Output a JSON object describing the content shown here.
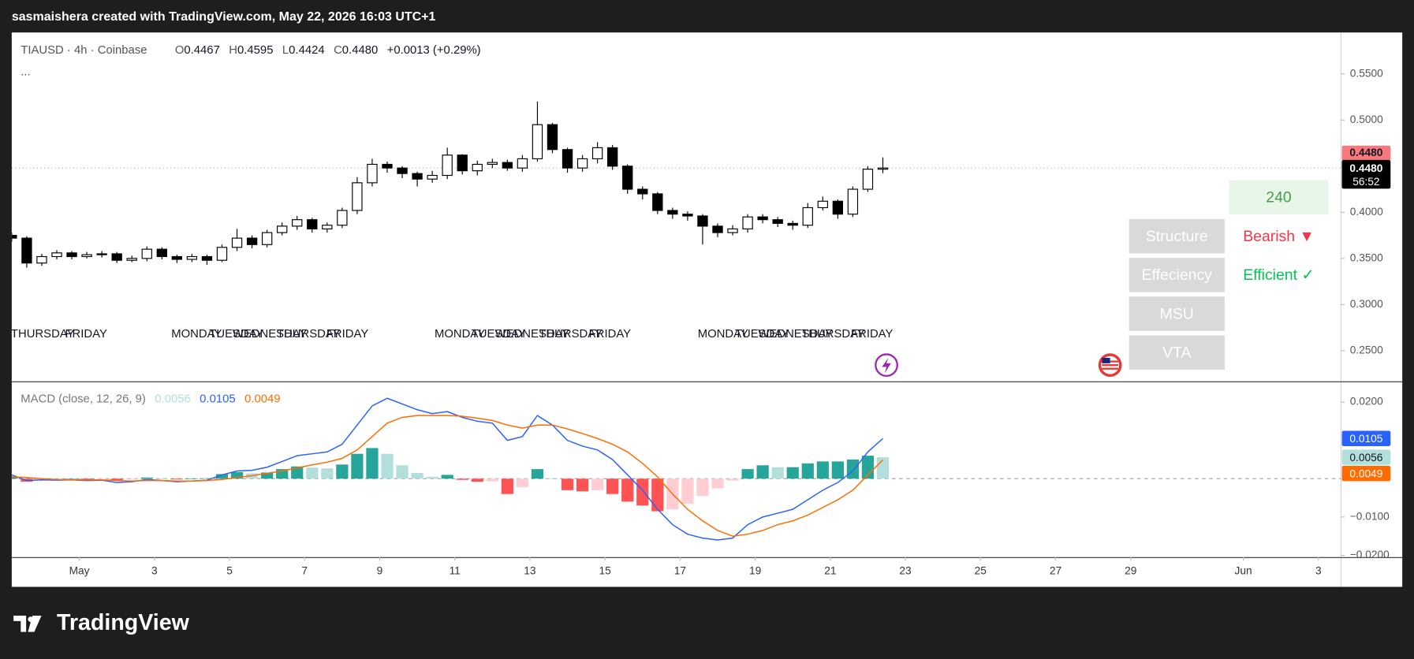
{
  "top_bar": "sasmaishera created with TradingView.com, May 22, 2026 16:03 UTC+1",
  "footer": "TradingView",
  "panel": {
    "timeframe": "240",
    "rows": [
      {
        "label": "Structure",
        "value": "Bearish ▼"
      },
      {
        "label": "Effeciency",
        "value": "Efficient ✓"
      },
      {
        "label": "MSU"
      },
      {
        "label": "VTA"
      }
    ]
  },
  "chart_data": [
    {
      "type": "candlestick",
      "symbol": "TIAUSD · 4h · Coinbase",
      "more": "...",
      "ohlc_header": [
        {
          "key": "O",
          "value": "0.4467"
        },
        {
          "key": "H",
          "value": "0.4595"
        },
        {
          "key": "L",
          "value": "0.4424"
        },
        {
          "key": "C",
          "value": "0.4480"
        }
      ],
      "change": "+0.0013 (+0.29%)",
      "up_color": "#ffffff",
      "down_color": "#000000",
      "wick_color": "#000000",
      "x": [
        -0.8,
        -0.4,
        0,
        0.4,
        0.8,
        1.2,
        1.6,
        2,
        2.4,
        2.8,
        3.2,
        3.6,
        4,
        4.4,
        4.8,
        5.2,
        5.6,
        6,
        6.4,
        6.8,
        7.2,
        7.6,
        8,
        8.4,
        8.8,
        9.2,
        9.6,
        10,
        10.4,
        10.8,
        11.2,
        11.6,
        12,
        12.4,
        12.8,
        13.2,
        13.6,
        14,
        14.4,
        14.8,
        15.2,
        15.6,
        16,
        16.4,
        16.8,
        17.2,
        17.6,
        18,
        18.4,
        18.8,
        19.2,
        19.6,
        20,
        20.4,
        20.8,
        21.2,
        21.6,
        22,
        22.4
      ],
      "open": [
        0.375,
        0.372,
        0.345,
        0.352,
        0.356,
        0.352,
        0.354,
        0.355,
        0.348,
        0.35,
        0.36,
        0.352,
        0.349,
        0.352,
        0.348,
        0.362,
        0.372,
        0.365,
        0.378,
        0.385,
        0.392,
        0.382,
        0.386,
        0.402,
        0.432,
        0.452,
        0.448,
        0.442,
        0.436,
        0.44,
        0.462,
        0.445,
        0.452,
        0.454,
        0.448,
        0.458,
        0.495,
        0.468,
        0.448,
        0.458,
        0.47,
        0.45,
        0.425,
        0.42,
        0.402,
        0.398,
        0.396,
        0.385,
        0.378,
        0.382,
        0.395,
        0.392,
        0.388,
        0.386,
        0.405,
        0.412,
        0.398,
        0.425,
        0.4467
      ],
      "high": [
        0.378,
        0.374,
        0.355,
        0.359,
        0.358,
        0.357,
        0.358,
        0.357,
        0.353,
        0.363,
        0.362,
        0.354,
        0.355,
        0.354,
        0.365,
        0.382,
        0.375,
        0.381,
        0.389,
        0.396,
        0.394,
        0.389,
        0.405,
        0.438,
        0.458,
        0.455,
        0.45,
        0.444,
        0.445,
        0.47,
        0.463,
        0.456,
        0.458,
        0.457,
        0.462,
        0.52,
        0.497,
        0.47,
        0.462,
        0.476,
        0.473,
        0.452,
        0.428,
        0.422,
        0.405,
        0.401,
        0.398,
        0.388,
        0.386,
        0.398,
        0.398,
        0.395,
        0.391,
        0.41,
        0.417,
        0.414,
        0.428,
        0.45,
        0.4595
      ],
      "low": [
        0.368,
        0.34,
        0.342,
        0.349,
        0.349,
        0.35,
        0.351,
        0.345,
        0.346,
        0.347,
        0.349,
        0.345,
        0.346,
        0.343,
        0.346,
        0.358,
        0.361,
        0.362,
        0.375,
        0.381,
        0.378,
        0.378,
        0.383,
        0.398,
        0.428,
        0.443,
        0.437,
        0.428,
        0.432,
        0.436,
        0.441,
        0.44,
        0.448,
        0.445,
        0.444,
        0.455,
        0.464,
        0.443,
        0.444,
        0.453,
        0.446,
        0.42,
        0.414,
        0.398,
        0.393,
        0.391,
        0.365,
        0.373,
        0.375,
        0.378,
        0.388,
        0.384,
        0.381,
        0.383,
        0.402,
        0.393,
        0.395,
        0.422,
        0.4424
      ],
      "close": [
        0.372,
        0.345,
        0.352,
        0.356,
        0.352,
        0.354,
        0.355,
        0.348,
        0.35,
        0.36,
        0.352,
        0.349,
        0.352,
        0.348,
        0.362,
        0.372,
        0.365,
        0.378,
        0.385,
        0.392,
        0.382,
        0.386,
        0.402,
        0.432,
        0.452,
        0.448,
        0.442,
        0.436,
        0.44,
        0.462,
        0.445,
        0.452,
        0.454,
        0.448,
        0.458,
        0.495,
        0.468,
        0.448,
        0.458,
        0.47,
        0.45,
        0.425,
        0.42,
        0.402,
        0.398,
        0.396,
        0.385,
        0.378,
        0.382,
        0.395,
        0.392,
        0.388,
        0.386,
        0.405,
        0.412,
        0.398,
        0.425,
        0.4467,
        0.448
      ],
      "ylim": [
        0.2168,
        0.5939
      ],
      "yticks": [
        {
          "value": 0.55,
          "label": "0.5500"
        },
        {
          "value": 0.5,
          "label": "0.5000"
        },
        {
          "value": 0.4,
          "label": "0.4000"
        },
        {
          "value": 0.35,
          "label": "0.3500"
        },
        {
          "value": 0.3,
          "label": "0.3000"
        },
        {
          "value": 0.25,
          "label": "0.2500"
        }
      ],
      "xlim": [
        -0.8,
        34.6
      ],
      "xticks": [
        {
          "value": 1,
          "label": "May"
        },
        3,
        5,
        7,
        9,
        11,
        13,
        15,
        17,
        19,
        21,
        23,
        25,
        27,
        29,
        {
          "value": 32,
          "label": "Jun"
        },
        {
          "value": 34,
          "label": "3"
        }
      ],
      "session_labels": [
        {
          "x": -0.82,
          "label": "THURSDAY"
        },
        {
          "x": 0.62,
          "label": "FRIDAY"
        },
        {
          "x": 3.45,
          "label": "MONDAY"
        },
        {
          "x": 4.46,
          "label": "TUESDAY"
        },
        {
          "x": 5.08,
          "label": "WEDNESDAY"
        },
        {
          "x": 6.26,
          "label": "THURSDAY"
        },
        {
          "x": 7.58,
          "label": "FRIDAY"
        },
        {
          "x": 10.46,
          "label": "MONDAY"
        },
        {
          "x": 11.44,
          "label": "TUESDAY"
        },
        {
          "x": 12.07,
          "label": "WEDNESDAY"
        },
        {
          "x": 13.24,
          "label": "THURSDAY"
        },
        {
          "x": 14.57,
          "label": "FRIDAY"
        },
        {
          "x": 17.47,
          "label": "MONDAY"
        },
        {
          "x": 18.46,
          "label": "TUESDAY"
        },
        {
          "x": 19.08,
          "label": "WEDNESDAY"
        },
        {
          "x": 20.23,
          "label": "THURSDAY"
        },
        {
          "x": 21.55,
          "label": "FRIDAY"
        }
      ],
      "alert_label": "0.4480",
      "last_price_label": "0.4480",
      "countdown": "56:52"
    },
    {
      "type": "macd",
      "title": "MACD (close, 12, 26, 9)",
      "ylim": [
        -0.02047,
        0.02518
      ],
      "yticks": [
        {
          "value": 0.02,
          "label": "0.0200"
        },
        {
          "value": -0.01,
          "label": "−0.0100"
        },
        {
          "value": -0.02,
          "label": "−0.0200"
        }
      ],
      "histogram": {
        "colors": {
          "up_rising": "#26a69a",
          "up_falling": "#b2dfdb",
          "down_rising": "#ffcdd2",
          "down_falling": "#ff5252"
        },
        "values": [
          0.0005,
          -0.0008,
          -0.0003,
          -0.0002,
          0.0,
          -0.0002,
          -0.0001,
          -0.0005,
          -0.0002,
          0.0003,
          0.0,
          -0.0002,
          0.0,
          0.0001,
          0.0012,
          0.0017,
          0.0014,
          0.0016,
          0.0025,
          0.0032,
          0.0029,
          0.0027,
          0.0037,
          0.0065,
          0.008,
          0.0065,
          0.0035,
          0.0015,
          0.0005,
          0.001,
          -0.0003,
          -0.0008,
          -0.0007,
          -0.004,
          -0.0022,
          0.0025,
          0.0,
          -0.003,
          -0.0033,
          -0.003,
          -0.004,
          -0.006,
          -0.007,
          -0.0085,
          -0.008,
          -0.0065,
          -0.0045,
          -0.0025,
          -0.0005,
          0.0025,
          0.0035,
          0.003,
          0.003,
          0.004,
          0.0045,
          0.0045,
          0.005,
          0.006,
          0.0056
        ]
      },
      "macd": {
        "color": "#2962ff",
        "values": [
          0.001,
          -0.0005,
          -0.0003,
          -0.0004,
          -0.0003,
          -0.0005,
          -0.0004,
          -0.001,
          -0.0008,
          -0.0002,
          -0.0005,
          -0.0008,
          -0.0006,
          -0.0004,
          0.001,
          0.002,
          0.0022,
          0.003,
          0.0045,
          0.006,
          0.0065,
          0.007,
          0.009,
          0.014,
          0.019,
          0.021,
          0.0195,
          0.018,
          0.017,
          0.0175,
          0.016,
          0.015,
          0.0145,
          0.01,
          0.011,
          0.0165,
          0.014,
          0.01,
          0.0085,
          0.0075,
          0.005,
          0.001,
          -0.003,
          -0.008,
          -0.012,
          -0.0145,
          -0.0155,
          -0.016,
          -0.0155,
          -0.012,
          -0.01,
          -0.009,
          -0.008,
          -0.0055,
          -0.003,
          -0.001,
          0.002,
          0.007,
          0.0105
        ]
      },
      "signal": {
        "color": "#ff6d00",
        "values": [
          0.0005,
          0.0003,
          0.0,
          -0.0002,
          -0.0003,
          -0.0003,
          -0.0003,
          -0.0005,
          -0.0006,
          -0.0005,
          -0.0005,
          -0.0006,
          -0.0006,
          -0.0005,
          -0.0002,
          0.0003,
          0.0008,
          0.0014,
          0.002,
          0.0028,
          0.0036,
          0.0043,
          0.0053,
          0.0075,
          0.011,
          0.0145,
          0.016,
          0.0165,
          0.0165,
          0.0165,
          0.0163,
          0.0158,
          0.0152,
          0.014,
          0.0132,
          0.014,
          0.014,
          0.013,
          0.0118,
          0.0105,
          0.009,
          0.007,
          0.004,
          0.0005,
          -0.004,
          -0.008,
          -0.011,
          -0.0135,
          -0.015,
          -0.0145,
          -0.0135,
          -0.012,
          -0.011,
          -0.0095,
          -0.0075,
          -0.0055,
          -0.003,
          0.001,
          0.0049
        ]
      }
    }
  ]
}
